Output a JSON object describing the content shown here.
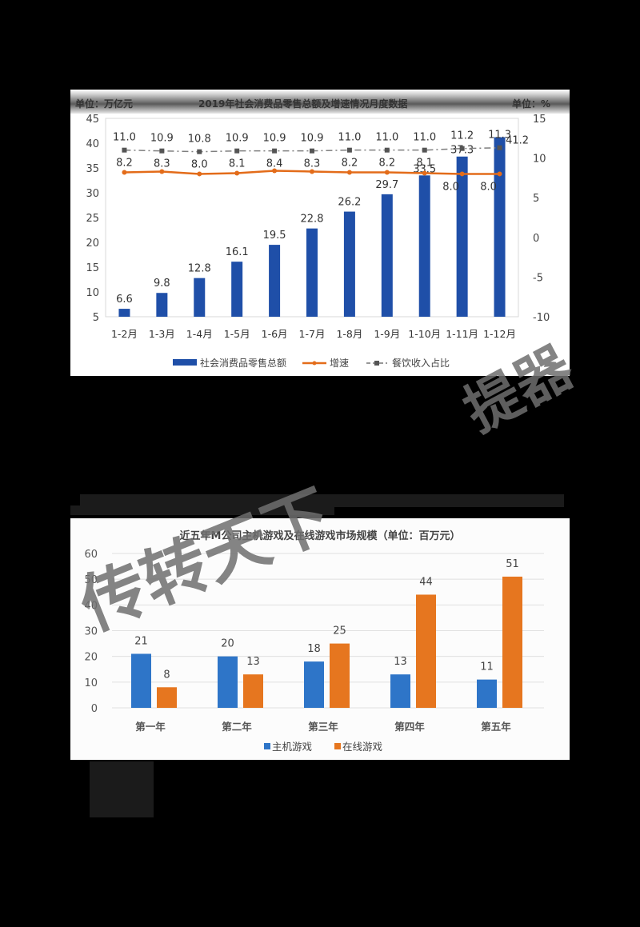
{
  "chart_data": [
    {
      "type": "bar+line",
      "title": "2019年社会消费品零售总额及增速情况月度数据",
      "left_unit": "单位：万亿元",
      "right_unit": "单位：%",
      "categories": [
        "1-2月",
        "1-3月",
        "1-4月",
        "1-5月",
        "1-6月",
        "1-7月",
        "1-8月",
        "1-9月",
        "1-10月",
        "1-11月",
        "1-12月"
      ],
      "series": [
        {
          "name": "社会消费品零售总额",
          "type": "bar",
          "axis": "left",
          "color": "#1f4fa8",
          "values": [
            6.6,
            9.8,
            12.8,
            16.1,
            19.5,
            22.8,
            26.2,
            29.7,
            33.5,
            37.3,
            41.2
          ]
        },
        {
          "name": "增速",
          "type": "line",
          "axis": "right",
          "color": "#e36c1a",
          "values": [
            8.2,
            8.3,
            8.0,
            8.1,
            8.4,
            8.3,
            8.2,
            8.2,
            8.1,
            8.0,
            8.0
          ]
        },
        {
          "name": "餐饮收入占比",
          "type": "line-dashed",
          "axis": "right",
          "color": "#7f7f7f",
          "values": [
            11.0,
            10.9,
            10.8,
            10.9,
            10.9,
            10.9,
            11.0,
            11.0,
            11.0,
            11.2,
            11.3
          ]
        }
      ],
      "ylim_left": [
        5,
        45
      ],
      "yticks_left": [
        5,
        10,
        15,
        20,
        25,
        30,
        35,
        40,
        45
      ],
      "ylim_right": [
        -10,
        15
      ],
      "yticks_right": [
        -10,
        -5,
        0,
        5,
        10,
        15
      ],
      "legend_position": "bottom",
      "grid": false
    },
    {
      "type": "bar",
      "title": "近五年M公司主机游戏及在线游戏市场规模（单位：百万元）",
      "categories": [
        "第一年",
        "第二年",
        "第三年",
        "第四年",
        "第五年"
      ],
      "series": [
        {
          "name": "主机游戏",
          "color": "#2e75c8",
          "values": [
            21,
            20,
            18,
            13,
            11
          ]
        },
        {
          "name": "在线游戏",
          "color": "#e6761f",
          "values": [
            8,
            13,
            25,
            44,
            51
          ]
        }
      ],
      "ylim": [
        0,
        60
      ],
      "yticks": [
        0,
        10,
        20,
        30,
        40,
        50,
        60
      ],
      "grid": true,
      "legend_position": "bottom"
    }
  ],
  "chart1": {
    "title": "2019年社会消费品零售总额及增速情况月度数据",
    "left_unit": "单位：万亿元",
    "right_unit": "单位：%",
    "legend": [
      "社会消费品零售总额",
      "增速",
      "餐饮收入占比"
    ]
  },
  "chart2": {
    "title": "近五年M公司主机游戏及在线游戏市场规模（单位：百万元）",
    "legend": [
      "主机游戏",
      "在线游戏"
    ]
  },
  "watermark": {
    "left": "传转天下",
    "right": "提器"
  }
}
